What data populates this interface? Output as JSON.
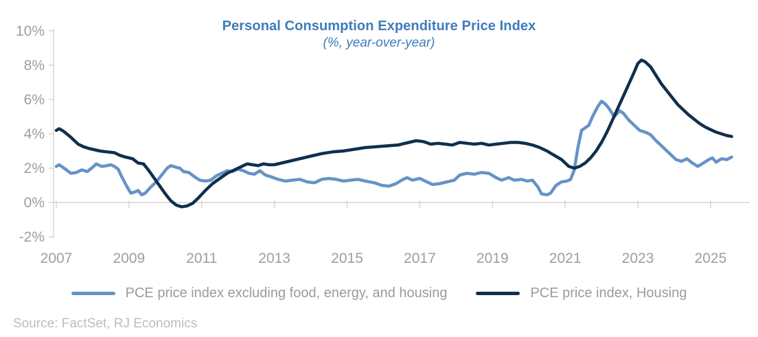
{
  "title": "Personal Consumption Expenditure Price Index",
  "subtitle": "(%, year-over-year)",
  "source": "Source: FactSet, RJ Economics",
  "colors": {
    "title": "#3e7cb9",
    "axis_line": "#d6d6d6",
    "axis_label": "#9e9e9e",
    "legend_label": "#9b9b9b",
    "source_text": "#bdbdbd",
    "series_core": "#6593c5",
    "series_housing": "#0f2f4d"
  },
  "legend": {
    "items": [
      {
        "label": "PCE price index excluding food, energy, and housing",
        "color": "#6593c5"
      },
      {
        "label": "PCE price index, Housing",
        "color": "#0f2f4d"
      }
    ]
  },
  "chart_data": {
    "type": "line",
    "title": "Personal Consumption Expenditure Price Index",
    "subtitle": "(%, year-over-year)",
    "legend_position": "bottom",
    "grid": "zero-baseline only, no full gridlines",
    "x_axis": {
      "range": [
        2007,
        2026.1
      ],
      "ticks": [
        2007,
        2009,
        2011,
        2013,
        2015,
        2017,
        2019,
        2021,
        2023,
        2025
      ],
      "tick_labels": [
        "2007",
        "2009",
        "2011",
        "2013",
        "2015",
        "2017",
        "2019",
        "2021",
        "2023",
        "2025"
      ]
    },
    "y_axis": {
      "unit": "%",
      "range": [
        -2,
        10
      ],
      "ticks": [
        10,
        8,
        6,
        4,
        2,
        0,
        -2
      ],
      "tick_labels": [
        "10%",
        "8%",
        "6%",
        "4%",
        "2%",
        "0%",
        "-2%"
      ]
    },
    "series": [
      {
        "name": "PCE price index excluding food, energy, and housing",
        "color": "#6593c5",
        "points": [
          [
            2007.0,
            2.1
          ],
          [
            2007.08,
            2.2
          ],
          [
            2007.25,
            1.95
          ],
          [
            2007.4,
            1.7
          ],
          [
            2007.55,
            1.75
          ],
          [
            2007.7,
            1.9
          ],
          [
            2007.85,
            1.8
          ],
          [
            2008.0,
            2.05
          ],
          [
            2008.1,
            2.25
          ],
          [
            2008.25,
            2.1
          ],
          [
            2008.4,
            2.15
          ],
          [
            2008.5,
            2.2
          ],
          [
            2008.6,
            2.1
          ],
          [
            2008.7,
            1.95
          ],
          [
            2008.8,
            1.5
          ],
          [
            2008.95,
            0.9
          ],
          [
            2009.05,
            0.55
          ],
          [
            2009.15,
            0.6
          ],
          [
            2009.25,
            0.7
          ],
          [
            2009.35,
            0.45
          ],
          [
            2009.45,
            0.55
          ],
          [
            2009.6,
            0.9
          ],
          [
            2009.75,
            1.2
          ],
          [
            2009.9,
            1.6
          ],
          [
            2010.05,
            2.0
          ],
          [
            2010.15,
            2.15
          ],
          [
            2010.3,
            2.05
          ],
          [
            2010.4,
            2.0
          ],
          [
            2010.5,
            1.8
          ],
          [
            2010.65,
            1.75
          ],
          [
            2010.8,
            1.5
          ],
          [
            2010.95,
            1.3
          ],
          [
            2011.1,
            1.25
          ],
          [
            2011.25,
            1.3
          ],
          [
            2011.4,
            1.55
          ],
          [
            2011.55,
            1.7
          ],
          [
            2011.7,
            1.85
          ],
          [
            2011.85,
            1.8
          ],
          [
            2012.0,
            1.95
          ],
          [
            2012.15,
            1.85
          ],
          [
            2012.3,
            1.7
          ],
          [
            2012.45,
            1.65
          ],
          [
            2012.6,
            1.85
          ],
          [
            2012.75,
            1.6
          ],
          [
            2012.9,
            1.5
          ],
          [
            2013.1,
            1.35
          ],
          [
            2013.3,
            1.25
          ],
          [
            2013.5,
            1.3
          ],
          [
            2013.7,
            1.35
          ],
          [
            2013.9,
            1.2
          ],
          [
            2014.1,
            1.15
          ],
          [
            2014.3,
            1.35
          ],
          [
            2014.5,
            1.4
          ],
          [
            2014.7,
            1.35
          ],
          [
            2014.9,
            1.25
          ],
          [
            2015.1,
            1.3
          ],
          [
            2015.3,
            1.35
          ],
          [
            2015.5,
            1.25
          ],
          [
            2015.75,
            1.15
          ],
          [
            2015.95,
            1.0
          ],
          [
            2016.15,
            0.95
          ],
          [
            2016.35,
            1.1
          ],
          [
            2016.5,
            1.3
          ],
          [
            2016.65,
            1.45
          ],
          [
            2016.8,
            1.3
          ],
          [
            2017.0,
            1.4
          ],
          [
            2017.15,
            1.25
          ],
          [
            2017.35,
            1.05
          ],
          [
            2017.55,
            1.1
          ],
          [
            2017.75,
            1.2
          ],
          [
            2017.95,
            1.3
          ],
          [
            2018.1,
            1.6
          ],
          [
            2018.3,
            1.7
          ],
          [
            2018.5,
            1.65
          ],
          [
            2018.7,
            1.75
          ],
          [
            2018.9,
            1.7
          ],
          [
            2019.1,
            1.45
          ],
          [
            2019.25,
            1.3
          ],
          [
            2019.45,
            1.45
          ],
          [
            2019.6,
            1.3
          ],
          [
            2019.8,
            1.35
          ],
          [
            2019.95,
            1.25
          ],
          [
            2020.1,
            1.3
          ],
          [
            2020.25,
            0.9
          ],
          [
            2020.35,
            0.5
          ],
          [
            2020.5,
            0.45
          ],
          [
            2020.6,
            0.55
          ],
          [
            2020.75,
            1.0
          ],
          [
            2020.9,
            1.2
          ],
          [
            2021.05,
            1.25
          ],
          [
            2021.15,
            1.35
          ],
          [
            2021.25,
            1.9
          ],
          [
            2021.35,
            3.2
          ],
          [
            2021.45,
            4.2
          ],
          [
            2021.55,
            4.35
          ],
          [
            2021.65,
            4.5
          ],
          [
            2021.75,
            5.0
          ],
          [
            2021.9,
            5.6
          ],
          [
            2022.0,
            5.9
          ],
          [
            2022.1,
            5.75
          ],
          [
            2022.2,
            5.5
          ],
          [
            2022.35,
            5.0
          ],
          [
            2022.5,
            5.35
          ],
          [
            2022.6,
            5.2
          ],
          [
            2022.75,
            4.8
          ],
          [
            2022.9,
            4.5
          ],
          [
            2023.05,
            4.2
          ],
          [
            2023.2,
            4.1
          ],
          [
            2023.35,
            3.95
          ],
          [
            2023.5,
            3.6
          ],
          [
            2023.7,
            3.2
          ],
          [
            2023.9,
            2.8
          ],
          [
            2024.05,
            2.5
          ],
          [
            2024.2,
            2.4
          ],
          [
            2024.35,
            2.55
          ],
          [
            2024.5,
            2.3
          ],
          [
            2024.65,
            2.1
          ],
          [
            2024.8,
            2.3
          ],
          [
            2024.95,
            2.5
          ],
          [
            2025.05,
            2.6
          ],
          [
            2025.15,
            2.35
          ],
          [
            2025.3,
            2.55
          ],
          [
            2025.45,
            2.5
          ],
          [
            2025.58,
            2.65
          ]
        ]
      },
      {
        "name": "PCE price index, Housing",
        "color": "#0f2f4d",
        "points": [
          [
            2007.0,
            4.2
          ],
          [
            2007.08,
            4.3
          ],
          [
            2007.2,
            4.15
          ],
          [
            2007.4,
            3.8
          ],
          [
            2007.6,
            3.4
          ],
          [
            2007.75,
            3.25
          ],
          [
            2007.9,
            3.15
          ],
          [
            2008.0,
            3.1
          ],
          [
            2008.2,
            3.0
          ],
          [
            2008.4,
            2.95
          ],
          [
            2008.6,
            2.9
          ],
          [
            2008.75,
            2.75
          ],
          [
            2008.9,
            2.65
          ],
          [
            2009.0,
            2.6
          ],
          [
            2009.1,
            2.55
          ],
          [
            2009.25,
            2.3
          ],
          [
            2009.4,
            2.25
          ],
          [
            2009.55,
            1.85
          ],
          [
            2009.7,
            1.4
          ],
          [
            2009.85,
            0.95
          ],
          [
            2010.0,
            0.5
          ],
          [
            2010.15,
            0.1
          ],
          [
            2010.3,
            -0.15
          ],
          [
            2010.45,
            -0.25
          ],
          [
            2010.6,
            -0.2
          ],
          [
            2010.75,
            -0.05
          ],
          [
            2010.9,
            0.25
          ],
          [
            2011.1,
            0.7
          ],
          [
            2011.3,
            1.1
          ],
          [
            2011.5,
            1.4
          ],
          [
            2011.7,
            1.7
          ],
          [
            2011.9,
            1.9
          ],
          [
            2012.1,
            2.1
          ],
          [
            2012.25,
            2.25
          ],
          [
            2012.4,
            2.2
          ],
          [
            2012.55,
            2.15
          ],
          [
            2012.7,
            2.25
          ],
          [
            2012.85,
            2.2
          ],
          [
            2013.0,
            2.2
          ],
          [
            2013.2,
            2.3
          ],
          [
            2013.4,
            2.4
          ],
          [
            2013.6,
            2.5
          ],
          [
            2013.8,
            2.6
          ],
          [
            2014.0,
            2.7
          ],
          [
            2014.3,
            2.85
          ],
          [
            2014.6,
            2.95
          ],
          [
            2014.9,
            3.0
          ],
          [
            2015.2,
            3.1
          ],
          [
            2015.5,
            3.2
          ],
          [
            2015.8,
            3.25
          ],
          [
            2016.1,
            3.3
          ],
          [
            2016.4,
            3.35
          ],
          [
            2016.7,
            3.5
          ],
          [
            2016.9,
            3.6
          ],
          [
            2017.1,
            3.55
          ],
          [
            2017.3,
            3.4
          ],
          [
            2017.5,
            3.45
          ],
          [
            2017.7,
            3.4
          ],
          [
            2017.9,
            3.35
          ],
          [
            2018.1,
            3.5
          ],
          [
            2018.3,
            3.45
          ],
          [
            2018.5,
            3.4
          ],
          [
            2018.7,
            3.45
          ],
          [
            2018.9,
            3.35
          ],
          [
            2019.1,
            3.4
          ],
          [
            2019.3,
            3.45
          ],
          [
            2019.5,
            3.5
          ],
          [
            2019.7,
            3.5
          ],
          [
            2019.9,
            3.45
          ],
          [
            2020.1,
            3.35
          ],
          [
            2020.3,
            3.2
          ],
          [
            2020.5,
            3.0
          ],
          [
            2020.7,
            2.75
          ],
          [
            2020.9,
            2.5
          ],
          [
            2021.1,
            2.1
          ],
          [
            2021.25,
            2.0
          ],
          [
            2021.4,
            2.1
          ],
          [
            2021.55,
            2.3
          ],
          [
            2021.7,
            2.6
          ],
          [
            2021.85,
            3.0
          ],
          [
            2022.0,
            3.5
          ],
          [
            2022.15,
            4.1
          ],
          [
            2022.3,
            4.8
          ],
          [
            2022.45,
            5.5
          ],
          [
            2022.6,
            6.2
          ],
          [
            2022.75,
            6.9
          ],
          [
            2022.9,
            7.6
          ],
          [
            2023.0,
            8.1
          ],
          [
            2023.1,
            8.3
          ],
          [
            2023.2,
            8.2
          ],
          [
            2023.35,
            7.9
          ],
          [
            2023.5,
            7.4
          ],
          [
            2023.65,
            6.9
          ],
          [
            2023.8,
            6.5
          ],
          [
            2023.95,
            6.1
          ],
          [
            2024.1,
            5.7
          ],
          [
            2024.25,
            5.4
          ],
          [
            2024.4,
            5.1
          ],
          [
            2024.55,
            4.85
          ],
          [
            2024.7,
            4.6
          ],
          [
            2024.85,
            4.4
          ],
          [
            2025.0,
            4.25
          ],
          [
            2025.15,
            4.1
          ],
          [
            2025.3,
            4.0
          ],
          [
            2025.45,
            3.9
          ],
          [
            2025.58,
            3.85
          ]
        ]
      }
    ]
  }
}
